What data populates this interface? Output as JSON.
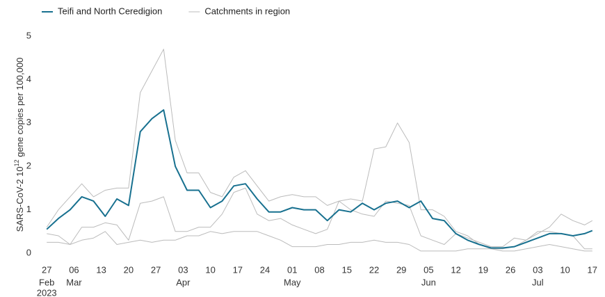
{
  "chart_data": {
    "type": "line",
    "ylabel_parts": [
      "SARS-CoV-2  10",
      "12",
      " gene  copies  per  100,000"
    ],
    "x": [
      "2023-02-27",
      "2023-03-02",
      "2023-03-05",
      "2023-03-08",
      "2023-03-11",
      "2023-03-14",
      "2023-03-17",
      "2023-03-20",
      "2023-03-23",
      "2023-03-26",
      "2023-03-29",
      "2023-04-01",
      "2023-04-04",
      "2023-04-07",
      "2023-04-10",
      "2023-04-13",
      "2023-04-16",
      "2023-04-19",
      "2023-04-22",
      "2023-04-25",
      "2023-04-28",
      "2023-05-01",
      "2023-05-04",
      "2023-05-07",
      "2023-05-10",
      "2023-05-13",
      "2023-05-16",
      "2023-05-19",
      "2023-05-22",
      "2023-05-25",
      "2023-05-28",
      "2023-05-31",
      "2023-06-03",
      "2023-06-06",
      "2023-06-09",
      "2023-06-12",
      "2023-06-15",
      "2023-06-18",
      "2023-06-21",
      "2023-06-24",
      "2023-06-27",
      "2023-06-30",
      "2023-07-03",
      "2023-07-06",
      "2023-07-09",
      "2023-07-12",
      "2023-07-15",
      "2023-07-17"
    ],
    "series": [
      {
        "name": "Teifi and North Ceredigion",
        "color": "#17708f",
        "width": 2,
        "values": [
          0.55,
          0.8,
          1.0,
          1.3,
          1.2,
          0.85,
          1.25,
          1.1,
          2.8,
          3.1,
          3.3,
          2.0,
          1.45,
          1.45,
          1.05,
          1.2,
          1.55,
          1.6,
          1.25,
          0.95,
          0.95,
          1.05,
          1.0,
          1.0,
          0.75,
          1.0,
          0.95,
          1.15,
          1.0,
          1.15,
          1.2,
          1.05,
          1.2,
          0.8,
          0.75,
          0.45,
          0.3,
          0.2,
          0.12,
          0.12,
          0.15,
          0.25,
          0.35,
          0.45,
          0.45,
          0.4,
          0.45,
          0.52
        ]
      },
      {
        "name": "Catchments in region",
        "color": "#bbbbbb",
        "width": 1,
        "values": [
          0.6,
          1.0,
          1.3,
          1.6,
          1.3,
          1.45,
          1.5,
          1.5,
          3.7,
          4.2,
          4.7,
          2.6,
          1.85,
          1.85,
          1.4,
          1.3,
          1.75,
          1.9,
          1.55,
          1.2,
          1.3,
          1.35,
          1.3,
          1.3,
          1.1,
          1.2,
          1.25,
          1.2,
          2.4,
          2.45,
          3.0,
          2.55,
          1.0,
          1.0,
          0.85,
          0.5,
          0.4,
          0.2,
          0.1,
          0.1,
          0.15,
          0.3,
          0.45,
          0.6,
          0.9,
          0.75,
          0.65,
          0.75
        ]
      },
      {
        "color": "#bbbbbb",
        "width": 1,
        "values": [
          0.45,
          0.4,
          0.2,
          0.6,
          0.6,
          0.7,
          0.65,
          0.3,
          1.15,
          1.2,
          1.3,
          0.5,
          0.5,
          0.6,
          0.6,
          0.9,
          1.4,
          1.5,
          0.9,
          0.75,
          0.8,
          0.65,
          0.55,
          0.45,
          0.55,
          1.2,
          1.0,
          0.9,
          0.85,
          1.2,
          1.15,
          1.1,
          0.4,
          0.3,
          0.2,
          0.45,
          0.35,
          0.25,
          0.15,
          0.15,
          0.35,
          0.3,
          0.5,
          0.5,
          0.45,
          0.4,
          0.1,
          0.1
        ]
      },
      {
        "color": "#bbbbbb",
        "width": 1,
        "values": [
          0.25,
          0.25,
          0.2,
          0.3,
          0.35,
          0.5,
          0.2,
          0.25,
          0.3,
          0.25,
          0.3,
          0.3,
          0.4,
          0.4,
          0.5,
          0.45,
          0.5,
          0.5,
          0.5,
          0.4,
          0.3,
          0.15,
          0.15,
          0.15,
          0.2,
          0.2,
          0.25,
          0.25,
          0.3,
          0.25,
          0.25,
          0.2,
          0.05,
          0.05,
          0.05,
          0.05,
          0.1,
          0.1,
          0.1,
          0.05,
          0.05,
          0.1,
          0.15,
          0.2,
          0.15,
          0.1,
          0.05,
          0.05
        ]
      }
    ],
    "xlim": [
      "2023-02-25",
      "2023-07-19"
    ],
    "xticks": [
      {
        "value": "2023-02-27",
        "label": "27",
        "sublabel": [
          "Feb",
          "2023"
        ]
      },
      {
        "value": "2023-03-06",
        "label": "06",
        "sublabel": [
          "Mar"
        ]
      },
      {
        "value": "2023-03-13",
        "label": "13"
      },
      {
        "value": "2023-03-20",
        "label": "20"
      },
      {
        "value": "2023-03-27",
        "label": "27"
      },
      {
        "value": "2023-04-03",
        "label": "03",
        "sublabel": [
          "Apr"
        ]
      },
      {
        "value": "2023-04-10",
        "label": "10"
      },
      {
        "value": "2023-04-17",
        "label": "17"
      },
      {
        "value": "2023-04-24",
        "label": "24"
      },
      {
        "value": "2023-05-01",
        "label": "01",
        "sublabel": [
          "May"
        ]
      },
      {
        "value": "2023-05-08",
        "label": "08"
      },
      {
        "value": "2023-05-15",
        "label": "15"
      },
      {
        "value": "2023-05-22",
        "label": "22"
      },
      {
        "value": "2023-05-29",
        "label": "29"
      },
      {
        "value": "2023-06-05",
        "label": "05",
        "sublabel": [
          "Jun"
        ]
      },
      {
        "value": "2023-06-12",
        "label": "12"
      },
      {
        "value": "2023-06-19",
        "label": "19"
      },
      {
        "value": "2023-06-26",
        "label": "26"
      },
      {
        "value": "2023-07-03",
        "label": "03",
        "sublabel": [
          "Jul"
        ]
      },
      {
        "value": "2023-07-10",
        "label": "10"
      },
      {
        "value": "2023-07-17",
        "label": "17"
      }
    ],
    "ylim": [
      0,
      5
    ],
    "yticks": [
      0,
      1,
      2,
      3,
      4,
      5
    ],
    "grid": false
  }
}
